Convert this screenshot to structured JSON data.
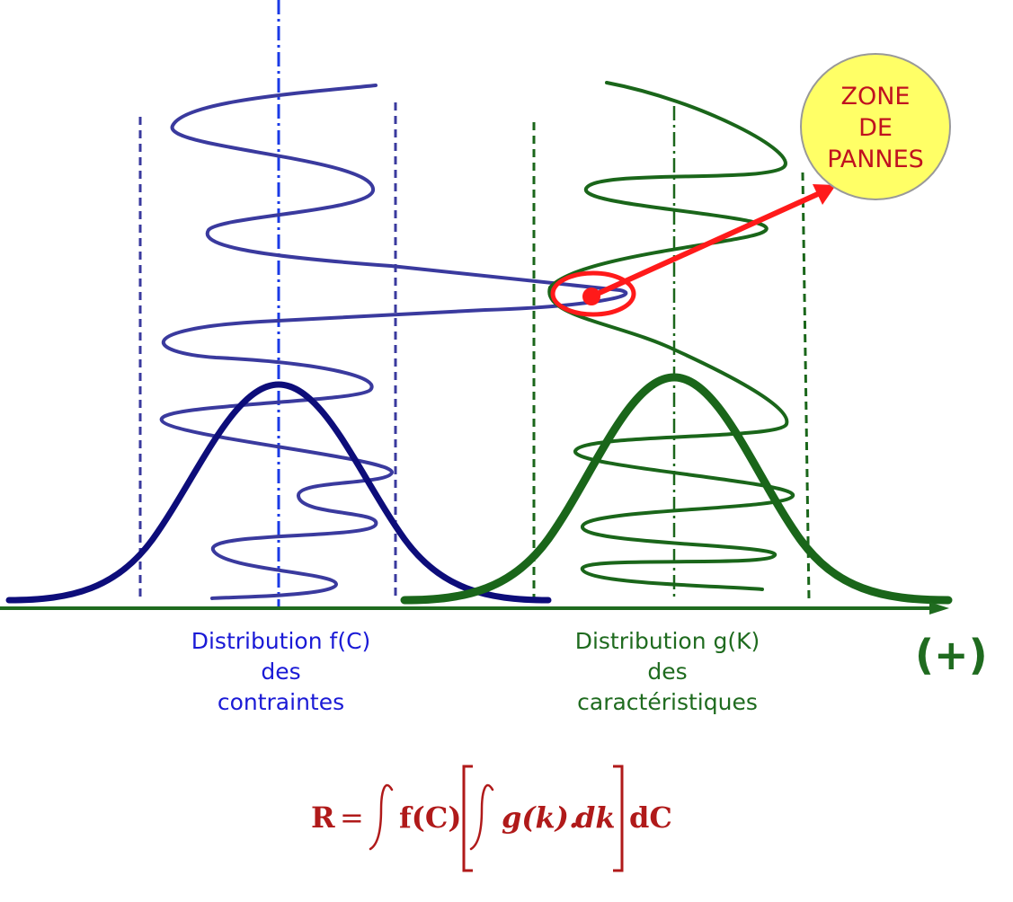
{
  "zone": {
    "lines": [
      "ZONE",
      "DE",
      "PANNES"
    ],
    "fill_color": "#ffff66",
    "text_color": "#c0111f"
  },
  "labels": {
    "left": {
      "lines": [
        "Distribution f(C)",
        "des",
        "contraintes"
      ],
      "color": "#1a1ad6"
    },
    "right": {
      "lines": [
        "Distribution g(K)",
        "des",
        "caractéristiques"
      ],
      "color": "#1f6b1f"
    }
  },
  "axis": {
    "direction_label": "(+)",
    "color": "#1f6b1f"
  },
  "formula": {
    "lhs": "R",
    "equals": "=",
    "outer_integrand": "f(C)",
    "inner_integrand": "g(k).",
    "inner_differential": "dk",
    "outer_differential": "dC",
    "color": "#b01a1a"
  },
  "colors": {
    "stress_distribution": "#0d0d7a",
    "stress_spiral": "#3a3a9e",
    "stress_center_line": "#1a3ae6",
    "strength_distribution": "#1a661a",
    "failure_marker": "#ff1a1a"
  }
}
